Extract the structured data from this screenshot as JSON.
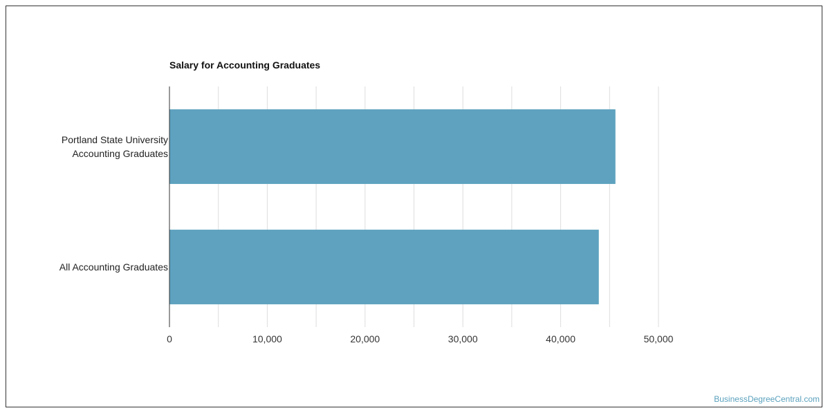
{
  "chart_data": {
    "type": "bar",
    "orientation": "horizontal",
    "title": "Salary for Accounting Graduates",
    "categories": [
      "Portland State University\nAccounting Graduates",
      "All Accounting Graduates"
    ],
    "values": [
      45600,
      43900
    ],
    "xlim": [
      0,
      50000
    ],
    "ticks": [
      0,
      10000,
      20000,
      30000,
      40000,
      50000
    ],
    "tick_labels": [
      "0",
      "10,000",
      "20,000",
      "30,000",
      "40,000",
      "50,000"
    ],
    "grid": true,
    "colors": {
      "bar": "#5ea2bf",
      "grid": "#dddddd",
      "axis": "#333333"
    }
  },
  "watermark": "BusinessDegreeCentral.com"
}
